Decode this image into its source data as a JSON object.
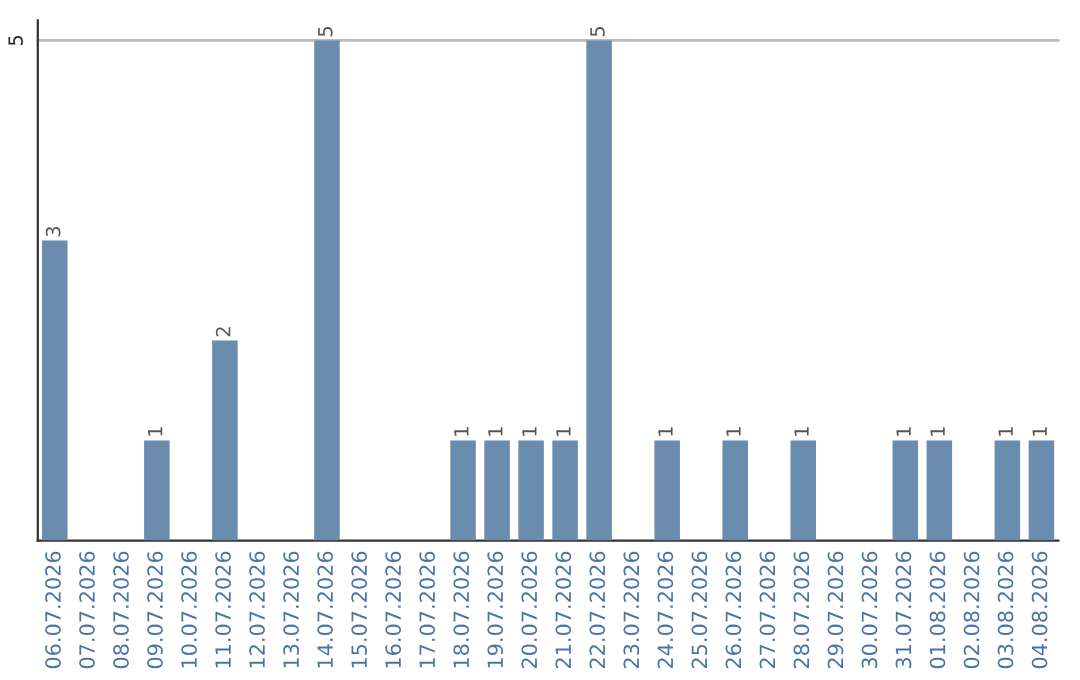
{
  "chart_data": {
    "type": "bar",
    "categories": [
      "06.07.2026",
      "07.07.2026",
      "08.07.2026",
      "09.07.2026",
      "10.07.2026",
      "11.07.2026",
      "12.07.2026",
      "13.07.2026",
      "14.07.2026",
      "15.07.2026",
      "16.07.2026",
      "17.07.2026",
      "18.07.2026",
      "19.07.2026",
      "20.07.2026",
      "21.07.2026",
      "22.07.2026",
      "23.07.2026",
      "24.07.2026",
      "25.07.2026",
      "26.07.2026",
      "27.07.2026",
      "28.07.2026",
      "29.07.2026",
      "30.07.2026",
      "31.07.2026",
      "01.08.2026",
      "02.08.2026",
      "03.08.2026",
      "04.08.2026"
    ],
    "values": [
      3,
      null,
      null,
      1,
      null,
      2,
      null,
      null,
      5,
      null,
      null,
      null,
      1,
      1,
      1,
      1,
      5,
      null,
      1,
      null,
      1,
      null,
      1,
      null,
      null,
      1,
      1,
      null,
      1,
      1
    ],
    "value_labels": [
      "3",
      null,
      null,
      "1",
      null,
      "2",
      null,
      null,
      "5",
      null,
      null,
      null,
      "1",
      "1",
      "1",
      "1",
      "5",
      null,
      "1",
      null,
      "1",
      null,
      "1",
      null,
      null,
      "1",
      "1",
      null,
      "1",
      "1"
    ],
    "color": "#6a8caf",
    "ylim": [
      0,
      5.2
    ],
    "yticks": [
      5
    ],
    "grid": "y"
  }
}
